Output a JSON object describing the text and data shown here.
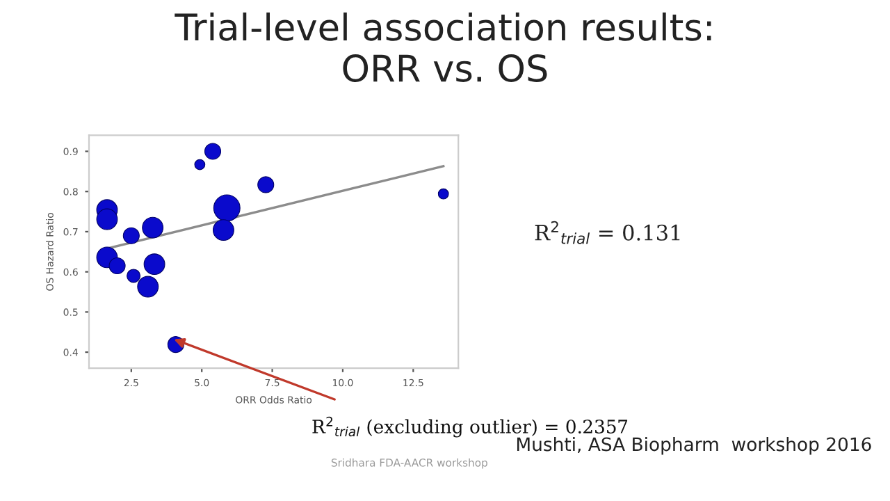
{
  "chart_data": {
    "type": "bubble",
    "title": "Trial-level association results:\nORR vs. OS",
    "xlabel": "ORR Odds Ratio",
    "ylabel": "OS Hazard Ratio",
    "series": [
      {
        "color": "#0a0acc",
        "x": [
          1.64,
          1.64,
          1.64,
          2.0,
          2.5,
          2.58,
          3.09,
          3.26,
          3.32,
          4.08,
          4.93,
          5.39,
          5.89,
          5.77,
          7.27,
          13.57
        ],
        "values": [
          0.754,
          0.731,
          0.636,
          0.615,
          0.69,
          0.59,
          0.563,
          0.71,
          0.619,
          0.419,
          0.867,
          0.9,
          0.759,
          0.704,
          0.817,
          0.794
        ],
        "sizes": [
          0.62,
          0.62,
          0.62,
          0.37,
          0.37,
          0.25,
          0.62,
          0.62,
          0.62,
          0.37,
          0.15,
          0.37,
          1,
          0.62,
          0.37,
          0.15
        ]
      },
      {
        "type": "line",
        "color": "#8c8c8c",
        "x": [
          1.64,
          13.57
        ],
        "values": [
          0.658,
          0.863
        ]
      }
    ],
    "xlim": [
      1.0,
      14.1
    ],
    "ylim": [
      0.36,
      0.94
    ],
    "xticks": [
      2.5,
      {
        "value": 5,
        "label": "5.0"
      },
      7.5,
      {
        "value": 10,
        "label": "10.0"
      },
      12.5
    ],
    "yticks": [
      0.4,
      0.5,
      0.6,
      0.7,
      0.8,
      0.9
    ],
    "grid": false,
    "legend": false,
    "annotations": [
      "R$^{2}$$_{trial}$ = 0.131",
      "R$^{2}$$_{trial}$ (excluding outlier) = 0.2357",
      "Mushti, ASA Biopharm  workshop 2016",
      "Sridhara FDA-AACR workshop"
    ]
  }
}
